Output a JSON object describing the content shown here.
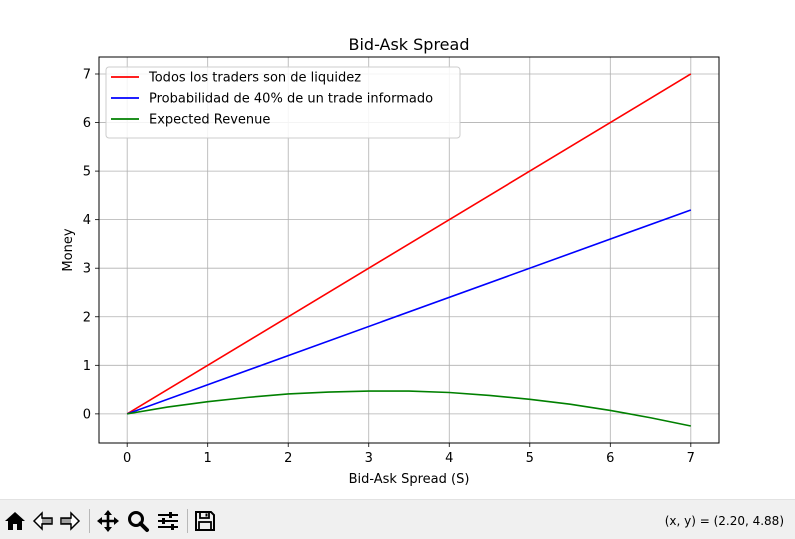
{
  "chart_data": {
    "type": "line",
    "title": "Bid-Ask Spread",
    "xlabel": "Bid-Ask Spread (S)",
    "ylabel": "Money",
    "xlim": [
      -0.35,
      7.35
    ],
    "ylim": [
      -0.6,
      7.35
    ],
    "xticks": [
      0,
      1,
      2,
      3,
      4,
      5,
      6,
      7
    ],
    "yticks": [
      0,
      1,
      2,
      3,
      4,
      5,
      6,
      7
    ],
    "grid": true,
    "legend_position": "top-left",
    "series": [
      {
        "name": "Todos los traders son de liquidez",
        "color": "#ff0000",
        "x": [
          0,
          7
        ],
        "y": [
          0,
          7
        ]
      },
      {
        "name": "Probabilidad de 40% de un trade informado",
        "color": "#0000ff",
        "x": [
          0,
          7
        ],
        "y": [
          0,
          4.2
        ]
      },
      {
        "name": "Expected Revenue",
        "color": "#008000",
        "x": [
          0,
          0.5,
          1,
          1.5,
          2,
          2.5,
          3,
          3.5,
          4,
          4.5,
          5,
          5.5,
          6,
          6.5,
          7
        ],
        "y": [
          0,
          0.14,
          0.25,
          0.34,
          0.41,
          0.45,
          0.47,
          0.47,
          0.44,
          0.38,
          0.3,
          0.2,
          0.07,
          -0.08,
          -0.25
        ]
      }
    ]
  },
  "toolbar": {
    "buttons": [
      {
        "name": "home-button",
        "icon": "home-icon"
      },
      {
        "name": "back-button",
        "icon": "arrow-left-icon"
      },
      {
        "name": "forward-button",
        "icon": "arrow-right-icon"
      },
      {
        "name": "pan-button",
        "icon": "move-icon"
      },
      {
        "name": "zoom-button",
        "icon": "magnifier-icon"
      },
      {
        "name": "configure-subplots-button",
        "icon": "sliders-icon"
      },
      {
        "name": "save-button",
        "icon": "floppy-disk-icon"
      }
    ],
    "coords_text": "(x, y) = (2.20, 4.88)"
  }
}
